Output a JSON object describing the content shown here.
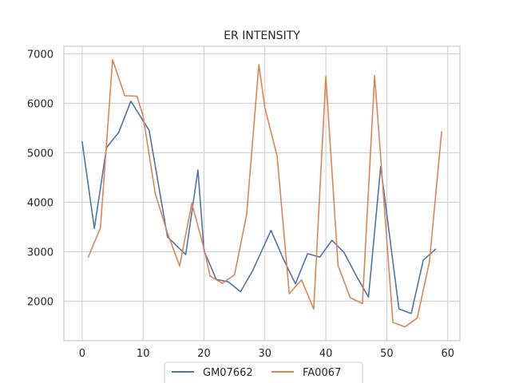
{
  "chart_data": {
    "type": "line",
    "title": "ER INTENSITY",
    "xlabel": "",
    "ylabel": "",
    "xlim": [
      -3,
      62
    ],
    "ylim": [
      1200,
      7150
    ],
    "xticks": [
      0,
      10,
      20,
      30,
      40,
      50,
      60
    ],
    "yticks": [
      2000,
      3000,
      4000,
      5000,
      6000,
      7000
    ],
    "grid": true,
    "legend_position": "bottom-center",
    "series": [
      {
        "name": "GM07662",
        "color": "#4c72b0",
        "x": [
          0,
          2,
          4,
          6,
          8,
          11,
          14,
          17,
          19,
          20,
          22,
          24,
          26,
          28,
          31,
          33,
          35,
          37,
          39,
          41,
          43,
          45,
          47,
          49,
          52,
          54,
          56,
          58
        ],
        "y": [
          5220,
          3470,
          5100,
          5410,
          6040,
          5450,
          3300,
          2940,
          4650,
          3020,
          2440,
          2390,
          2190,
          2620,
          3430,
          2860,
          2350,
          2960,
          2890,
          3230,
          2980,
          2510,
          2080,
          4720,
          1840,
          1750,
          2830,
          3050
        ]
      },
      {
        "name": "FA0067",
        "color": "#dd8452",
        "x": [
          1,
          3,
          5,
          7,
          9,
          10,
          12,
          14,
          16,
          18,
          20,
          21,
          23,
          25,
          27,
          29,
          30,
          32,
          34,
          36,
          38,
          40,
          42,
          44,
          46,
          48,
          51,
          53,
          55,
          57,
          59
        ],
        "y": [
          2890,
          3480,
          6880,
          6150,
          6140,
          5740,
          4170,
          3380,
          2710,
          3980,
          3060,
          2510,
          2360,
          2530,
          3750,
          6780,
          5900,
          4930,
          2150,
          2430,
          1840,
          6540,
          2720,
          2070,
          1950,
          6560,
          1570,
          1480,
          1660,
          2790,
          5420
        ]
      }
    ]
  }
}
